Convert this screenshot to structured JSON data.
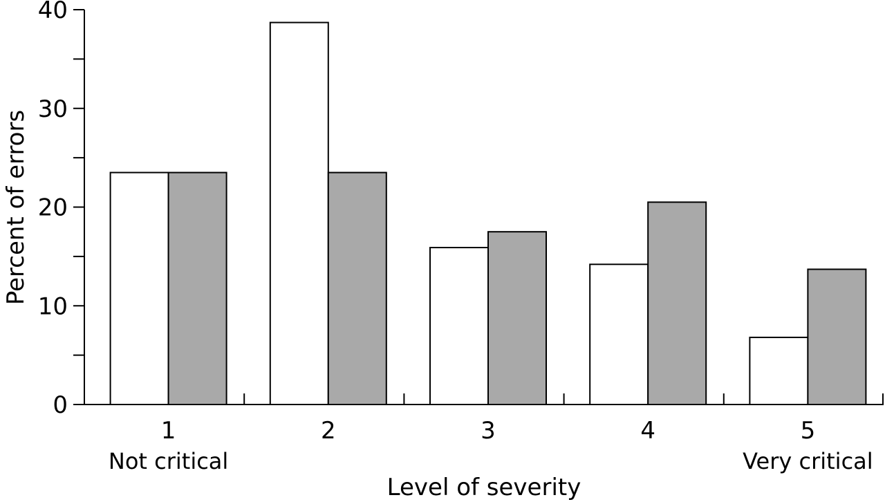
{
  "chart_data": {
    "type": "bar",
    "categories": [
      "1",
      "2",
      "3",
      "4",
      "5"
    ],
    "category_sublabels": [
      "Not critical",
      "",
      "",
      "",
      "Very critical"
    ],
    "series": [
      {
        "values": [
          23.5,
          38.7,
          15.9,
          14.2,
          6.8
        ],
        "color": "#ffffff"
      },
      {
        "values": [
          23.5,
          23.5,
          17.5,
          20.5,
          13.7
        ],
        "color": "#a9a9a9"
      }
    ],
    "title": "",
    "xlabel": "Level of severity",
    "ylabel": "Percent of errors",
    "ylim": [
      0,
      40
    ],
    "yticks": [
      0,
      10,
      20,
      30,
      40
    ],
    "grid": false,
    "legend": "none"
  }
}
